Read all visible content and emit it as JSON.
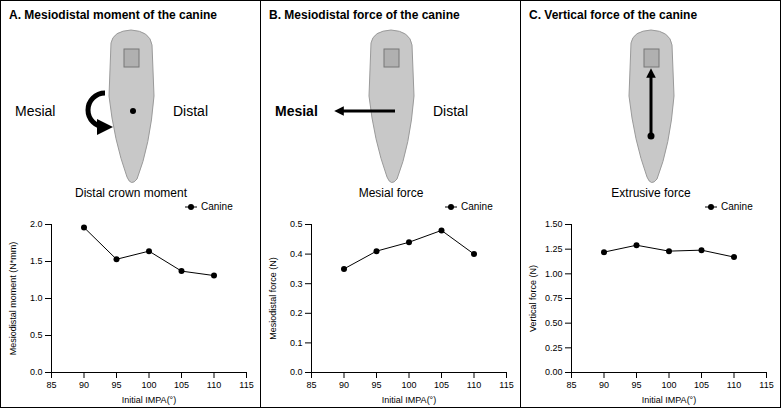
{
  "chart_data": [
    {
      "type": "line",
      "title": "A. Mesiodistal moment of the canine",
      "annotations": [
        "Mesial",
        "Distal",
        "Distal crown moment"
      ],
      "x_label": "Initial IMPA(°)",
      "y_label": "Mesiodistal moment (N*mm)",
      "x": [
        90,
        95,
        100,
        105,
        110
      ],
      "series": [
        {
          "name": "Canine",
          "color": "#000000",
          "marker": "circle",
          "line_style": "solid",
          "values": [
            1.96,
            1.53,
            1.64,
            1.37,
            1.31
          ]
        }
      ],
      "xlim": [
        85,
        115
      ],
      "xticks": [
        85,
        90,
        95,
        100,
        105,
        110,
        115
      ],
      "ylim": [
        0,
        2.0
      ],
      "yticks": [
        {
          "value": 0,
          "label": "0.0"
        },
        0.5,
        {
          "value": 1,
          "label": "1.0"
        },
        1.5,
        {
          "value": 2,
          "label": "2.0"
        }
      ],
      "grid": false,
      "legend": "top-right"
    },
    {
      "type": "line",
      "title": "B. Mesiodistal force of the canine",
      "annotations": [
        "Mesial",
        "Distal",
        "Mesial force"
      ],
      "x_label": "Initial IMPA(°)",
      "y_label": "Mesiodistal force (N)",
      "x": [
        90,
        95,
        100,
        105,
        110
      ],
      "series": [
        {
          "name": "Canine",
          "color": "#000000",
          "marker": "circle",
          "line_style": "solid",
          "values": [
            0.35,
            0.41,
            0.44,
            0.48,
            0.4
          ]
        }
      ],
      "xlim": [
        85,
        115
      ],
      "xticks": [
        85,
        90,
        95,
        100,
        105,
        110,
        115
      ],
      "ylim": [
        0,
        0.5
      ],
      "yticks": [
        {
          "value": 0,
          "label": "0.0"
        },
        0.1,
        0.2,
        0.3,
        0.4,
        0.5
      ],
      "grid": false,
      "legend": "top-right"
    },
    {
      "type": "line",
      "title": "C. Vertical force of the canine",
      "annotations": [
        "Extrusive force"
      ],
      "x_label": "Initial IMPA(°)",
      "y_label": "Vertical force (N)",
      "x": [
        90,
        95,
        100,
        105,
        110
      ],
      "series": [
        {
          "name": "Canine",
          "color": "#000000",
          "marker": "circle",
          "line_style": "solid",
          "values": [
            1.22,
            1.29,
            1.23,
            1.24,
            1.17
          ]
        }
      ],
      "xlim": [
        85,
        115
      ],
      "xticks": [
        85,
        90,
        95,
        100,
        105,
        110,
        115
      ],
      "ylim": [
        0,
        1.5
      ],
      "yticks": [
        {
          "value": 0,
          "label": "0.00"
        },
        0.25,
        {
          "value": 0.5,
          "label": "0.50"
        },
        0.75,
        {
          "value": 1,
          "label": "1.00"
        },
        1.25,
        {
          "value": 1.5,
          "label": "1.50"
        }
      ],
      "grid": false,
      "legend": "top-right"
    }
  ]
}
